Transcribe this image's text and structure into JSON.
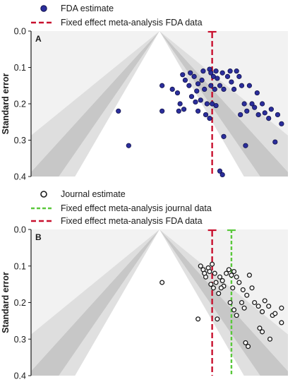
{
  "chart_data": [
    {
      "type": "scatter",
      "panel_label": "A",
      "ylabel": "Standard error",
      "ylim": [
        0,
        0.4
      ],
      "yticks": [
        "0.0",
        "0.1",
        "0.2",
        "0.3",
        "0.4"
      ],
      "y_axis_reversed": true,
      "xlim": [
        -1.0,
        1.0
      ],
      "funnel_apex": 0.0,
      "legend": [
        {
          "kind": "point",
          "label": "FDA estimate",
          "color": "#2b2e9c"
        },
        {
          "kind": "dashed",
          "label": "Fixed effect meta-analysis FDA data",
          "color": "#c8102e"
        }
      ],
      "reference_lines": [
        {
          "label": "Fixed effect meta-analysis FDA data",
          "x": 0.41,
          "color": "#c8102e",
          "style": "dashed"
        }
      ],
      "series": [
        {
          "label": "FDA estimate",
          "marker": "filled",
          "color": "#2b2e9c",
          "points": [
            {
              "x": -0.32,
              "y": 0.22
            },
            {
              "x": -0.24,
              "y": 0.315
            },
            {
              "x": 0.02,
              "y": 0.15
            },
            {
              "x": 0.02,
              "y": 0.22
            },
            {
              "x": 0.1,
              "y": 0.16
            },
            {
              "x": 0.18,
              "y": 0.12
            },
            {
              "x": 0.2,
              "y": 0.135
            },
            {
              "x": 0.14,
              "y": 0.17
            },
            {
              "x": 0.16,
              "y": 0.2
            },
            {
              "x": 0.19,
              "y": 0.215
            },
            {
              "x": 0.15,
              "y": 0.22
            },
            {
              "x": 0.24,
              "y": 0.115
            },
            {
              "x": 0.23,
              "y": 0.15
            },
            {
              "x": 0.25,
              "y": 0.18
            },
            {
              "x": 0.27,
              "y": 0.125
            },
            {
              "x": 0.29,
              "y": 0.165
            },
            {
              "x": 0.28,
              "y": 0.195
            },
            {
              "x": 0.3,
              "y": 0.22
            },
            {
              "x": 0.3,
              "y": 0.145
            },
            {
              "x": 0.34,
              "y": 0.11
            },
            {
              "x": 0.33,
              "y": 0.135
            },
            {
              "x": 0.35,
              "y": 0.16
            },
            {
              "x": 0.32,
              "y": 0.19
            },
            {
              "x": 0.37,
              "y": 0.2
            },
            {
              "x": 0.36,
              "y": 0.23
            },
            {
              "x": 0.39,
              "y": 0.105
            },
            {
              "x": 0.4,
              "y": 0.115
            },
            {
              "x": 0.42,
              "y": 0.125
            },
            {
              "x": 0.44,
              "y": 0.11
            },
            {
              "x": 0.4,
              "y": 0.15
            },
            {
              "x": 0.43,
              "y": 0.16
            },
            {
              "x": 0.45,
              "y": 0.13
            },
            {
              "x": 0.41,
              "y": 0.2
            },
            {
              "x": 0.39,
              "y": 0.24
            },
            {
              "x": 0.47,
              "y": 0.15
            },
            {
              "x": 0.49,
              "y": 0.115
            },
            {
              "x": 0.5,
              "y": 0.16
            },
            {
              "x": 0.5,
              "y": 0.29
            },
            {
              "x": 0.53,
              "y": 0.125
            },
            {
              "x": 0.55,
              "y": 0.11
            },
            {
              "x": 0.56,
              "y": 0.14
            },
            {
              "x": 0.6,
              "y": 0.11
            },
            {
              "x": 0.62,
              "y": 0.125
            },
            {
              "x": 0.64,
              "y": 0.15
            },
            {
              "x": 0.66,
              "y": 0.2
            },
            {
              "x": 0.68,
              "y": 0.22
            },
            {
              "x": 0.63,
              "y": 0.23
            },
            {
              "x": 0.7,
              "y": 0.15
            },
            {
              "x": 0.72,
              "y": 0.2
            },
            {
              "x": 0.74,
              "y": 0.21
            },
            {
              "x": 0.76,
              "y": 0.17
            },
            {
              "x": 0.77,
              "y": 0.23
            },
            {
              "x": 0.8,
              "y": 0.2
            },
            {
              "x": 0.82,
              "y": 0.225
            },
            {
              "x": 0.85,
              "y": 0.24
            },
            {
              "x": 0.87,
              "y": 0.215
            },
            {
              "x": 0.92,
              "y": 0.23
            },
            {
              "x": 0.95,
              "y": 0.255
            },
            {
              "x": 0.9,
              "y": 0.305
            },
            {
              "x": 0.67,
              "y": 0.315
            },
            {
              "x": 0.47,
              "y": 0.385
            },
            {
              "x": 0.49,
              "y": 0.395
            },
            {
              "x": 0.44,
              "y": 0.205
            },
            {
              "x": 0.58,
              "y": 0.16
            }
          ]
        }
      ]
    },
    {
      "type": "scatter",
      "panel_label": "B",
      "ylabel": "Standard error",
      "ylim": [
        0,
        0.4
      ],
      "yticks": [
        "0.0",
        "0.1",
        "0.2",
        "0.3",
        "0.4"
      ],
      "y_axis_reversed": true,
      "xlim": [
        -1.0,
        1.0
      ],
      "funnel_apex": 0.0,
      "legend": [
        {
          "kind": "open-point",
          "label": "Journal estimate",
          "color": "#1a1a1a"
        },
        {
          "kind": "dashed",
          "label": "Fixed effect meta-analysis journal data",
          "color": "#5ac83c"
        },
        {
          "kind": "dashed",
          "label": "Fixed effect meta-analysis FDA data",
          "color": "#c8102e"
        }
      ],
      "reference_lines": [
        {
          "label": "Fixed effect meta-analysis FDA data",
          "x": 0.41,
          "color": "#c8102e",
          "style": "dashed"
        },
        {
          "label": "Fixed effect meta-analysis journal data",
          "x": 0.56,
          "color": "#5ac83c",
          "style": "dashed"
        }
      ],
      "series": [
        {
          "label": "Journal estimate",
          "marker": "open",
          "color": "#1a1a1a",
          "points": [
            {
              "x": 0.02,
              "y": 0.145
            },
            {
              "x": 0.3,
              "y": 0.245
            },
            {
              "x": 0.45,
              "y": 0.245
            },
            {
              "x": 0.32,
              "y": 0.1
            },
            {
              "x": 0.34,
              "y": 0.11
            },
            {
              "x": 0.36,
              "y": 0.13
            },
            {
              "x": 0.35,
              "y": 0.12
            },
            {
              "x": 0.38,
              "y": 0.105
            },
            {
              "x": 0.41,
              "y": 0.095
            },
            {
              "x": 0.39,
              "y": 0.115
            },
            {
              "x": 0.43,
              "y": 0.12
            },
            {
              "x": 0.44,
              "y": 0.145
            },
            {
              "x": 0.4,
              "y": 0.15
            },
            {
              "x": 0.42,
              "y": 0.16
            },
            {
              "x": 0.47,
              "y": 0.13
            },
            {
              "x": 0.49,
              "y": 0.14
            },
            {
              "x": 0.5,
              "y": 0.155
            },
            {
              "x": 0.48,
              "y": 0.16
            },
            {
              "x": 0.52,
              "y": 0.12
            },
            {
              "x": 0.54,
              "y": 0.11
            },
            {
              "x": 0.56,
              "y": 0.125
            },
            {
              "x": 0.58,
              "y": 0.115
            },
            {
              "x": 0.6,
              "y": 0.13
            },
            {
              "x": 0.62,
              "y": 0.145
            },
            {
              "x": 0.57,
              "y": 0.16
            },
            {
              "x": 0.55,
              "y": 0.2
            },
            {
              "x": 0.58,
              "y": 0.22
            },
            {
              "x": 0.6,
              "y": 0.235
            },
            {
              "x": 0.64,
              "y": 0.2
            },
            {
              "x": 0.66,
              "y": 0.215
            },
            {
              "x": 0.68,
              "y": 0.18
            },
            {
              "x": 0.7,
              "y": 0.125
            },
            {
              "x": 0.72,
              "y": 0.16
            },
            {
              "x": 0.74,
              "y": 0.2
            },
            {
              "x": 0.77,
              "y": 0.21
            },
            {
              "x": 0.8,
              "y": 0.225
            },
            {
              "x": 0.82,
              "y": 0.195
            },
            {
              "x": 0.85,
              "y": 0.21
            },
            {
              "x": 0.78,
              "y": 0.27
            },
            {
              "x": 0.8,
              "y": 0.28
            },
            {
              "x": 0.88,
              "y": 0.235
            },
            {
              "x": 0.9,
              "y": 0.23
            },
            {
              "x": 0.95,
              "y": 0.215
            },
            {
              "x": 0.95,
              "y": 0.255
            },
            {
              "x": 0.86,
              "y": 0.3
            },
            {
              "x": 0.67,
              "y": 0.31
            },
            {
              "x": 0.69,
              "y": 0.32
            },
            {
              "x": 0.65,
              "y": 0.165
            },
            {
              "x": 0.46,
              "y": 0.175
            }
          ]
        }
      ]
    }
  ]
}
